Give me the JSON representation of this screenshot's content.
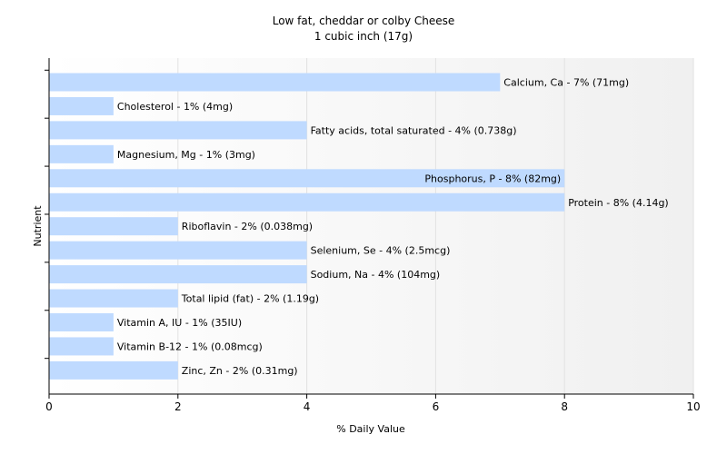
{
  "chart_data": {
    "type": "bar",
    "orientation": "horizontal",
    "title": "Low fat, cheddar or colby Cheese",
    "subtitle": "1 cubic inch (17g)",
    "xlabel": "% Daily Value",
    "ylabel": "Nutrient",
    "xlim": [
      0,
      10
    ],
    "xticks": [
      0,
      2,
      4,
      6,
      8,
      10
    ],
    "grid": true,
    "bar_color": "#bfdaff",
    "categories": [
      "Calcium, Ca",
      "Cholesterol",
      "Fatty acids, total saturated",
      "Magnesium, Mg",
      "Phosphorus, P",
      "Protein",
      "Riboflavin",
      "Selenium, Se",
      "Sodium, Na",
      "Total lipid (fat)",
      "Vitamin A, IU",
      "Vitamin B-12",
      "Zinc, Zn"
    ],
    "values": [
      7,
      1,
      4,
      1,
      8,
      8,
      2,
      4,
      4,
      2,
      1,
      1,
      2
    ],
    "labels": [
      "Calcium, Ca - 7% (71mg)",
      "Cholesterol - 1% (4mg)",
      "Fatty acids, total saturated - 4% (0.738g)",
      "Magnesium, Mg - 1% (3mg)",
      "Phosphorus, P - 8% (82mg)",
      "Protein - 8% (4.14g)",
      "Riboflavin - 2% (0.038mg)",
      "Selenium, Se - 4% (2.5mcg)",
      "Sodium, Na - 4% (104mg)",
      "Total lipid (fat) - 2% (1.19g)",
      "Vitamin A, IU - 1% (35IU)",
      "Vitamin B-12 - 1% (0.08mcg)",
      "Zinc, Zn - 2% (0.31mg)"
    ]
  }
}
